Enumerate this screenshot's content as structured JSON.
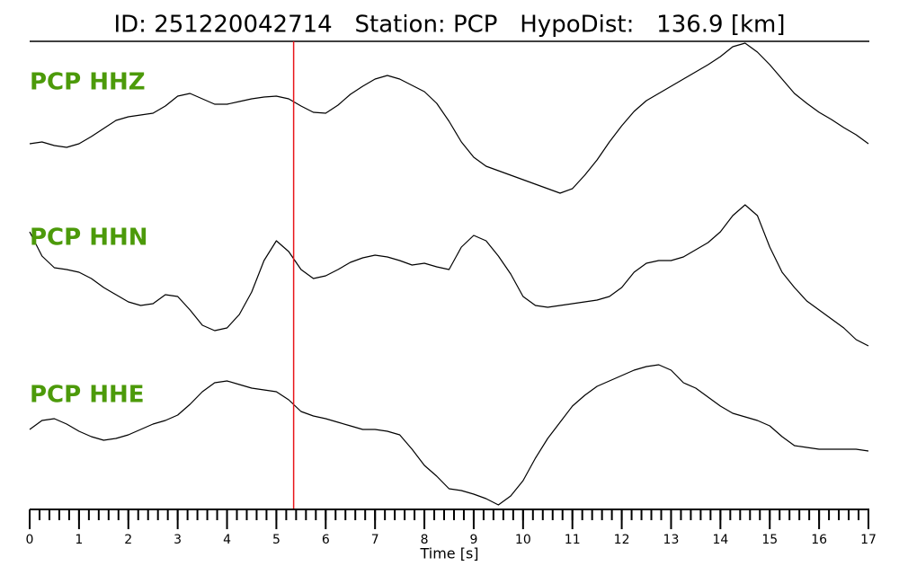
{
  "chart_data": {
    "type": "line",
    "title": "ID: 251220042714   Station: PCP   HypoDist:   136.9 [km]",
    "xlabel": "Time [s]",
    "xlim": [
      0,
      17
    ],
    "xticks": [
      0,
      1,
      2,
      3,
      4,
      5,
      6,
      7,
      8,
      9,
      10,
      11,
      12,
      13,
      14,
      15,
      16,
      17
    ],
    "minor_tick_interval": 0.2,
    "ylim": [
      -90,
      90
    ],
    "marker_x": 5.35,
    "marker_color": "#e8161b",
    "label_color": "#4c9a0a",
    "x": [
      0,
      0.25,
      0.5,
      0.75,
      1,
      1.25,
      1.5,
      1.75,
      2,
      2.25,
      2.5,
      2.75,
      3,
      3.25,
      3.5,
      3.75,
      4,
      4.25,
      4.5,
      4.75,
      5,
      5.25,
      5.5,
      5.75,
      6,
      6.25,
      6.5,
      6.75,
      7,
      7.25,
      7.5,
      7.75,
      8,
      8.25,
      8.5,
      8.75,
      9,
      9.25,
      9.5,
      9.75,
      10,
      10.25,
      10.5,
      10.75,
      11,
      11.25,
      11.5,
      11.75,
      12,
      12.25,
      12.5,
      12.75,
      13,
      13.25,
      13.5,
      13.75,
      14,
      14.25,
      14.5,
      14.75,
      15,
      15.25,
      15.5,
      15.75,
      16,
      16.25,
      16.5,
      16.75,
      17
    ],
    "series": [
      {
        "name": "PCP HHZ",
        "color": "#000000",
        "values": [
          -28,
          -26,
          -30,
          -32,
          -28,
          -20,
          -11,
          -2,
          2,
          4,
          6,
          14,
          25,
          28,
          22,
          16,
          16,
          19,
          22,
          24,
          25,
          22,
          14,
          7,
          6,
          15,
          27,
          36,
          44,
          48,
          44,
          37,
          30,
          17,
          -3,
          -26,
          -43,
          -53,
          -58,
          -63,
          -68,
          -73,
          -78,
          -83,
          -78,
          -63,
          -46,
          -26,
          -8,
          8,
          20,
          28,
          36,
          44,
          52,
          60,
          69,
          80,
          84,
          74,
          60,
          44,
          28,
          17,
          7,
          -1,
          -10,
          -18,
          -28
        ]
      },
      {
        "name": "PCP HHN",
        "color": "#000000",
        "values": [
          47,
          20,
          7,
          5,
          2,
          -5,
          -15,
          -23,
          -31,
          -35,
          -33,
          -23,
          -25,
          -40,
          -57,
          -63,
          -60,
          -45,
          -20,
          15,
          37,
          25,
          5,
          -5,
          -2,
          5,
          13,
          18,
          21,
          19,
          15,
          10,
          12,
          8,
          5,
          30,
          43,
          37,
          20,
          0,
          -25,
          -35,
          -37,
          -35,
          -33,
          -31,
          -29,
          -25,
          -15,
          2,
          12,
          15,
          15,
          19,
          27,
          35,
          47,
          65,
          77,
          65,
          30,
          2,
          -15,
          -30,
          -40,
          -50,
          -60,
          -73,
          -80
        ]
      },
      {
        "name": "PCP HHE",
        "color": "#000000",
        "values": [
          2,
          12,
          14,
          8,
          0,
          -6,
          -10,
          -8,
          -4,
          2,
          8,
          12,
          18,
          30,
          44,
          54,
          56,
          52,
          48,
          46,
          44,
          35,
          22,
          17,
          14,
          10,
          6,
          2,
          2,
          0,
          -4,
          -20,
          -38,
          -50,
          -64,
          -66,
          -70,
          -75,
          -82,
          -72,
          -55,
          -30,
          -8,
          10,
          28,
          40,
          50,
          56,
          62,
          68,
          72,
          74,
          68,
          54,
          48,
          38,
          28,
          20,
          16,
          12,
          6,
          -6,
          -16,
          -18,
          -20,
          -20,
          -20,
          -20,
          -22
        ]
      }
    ]
  }
}
